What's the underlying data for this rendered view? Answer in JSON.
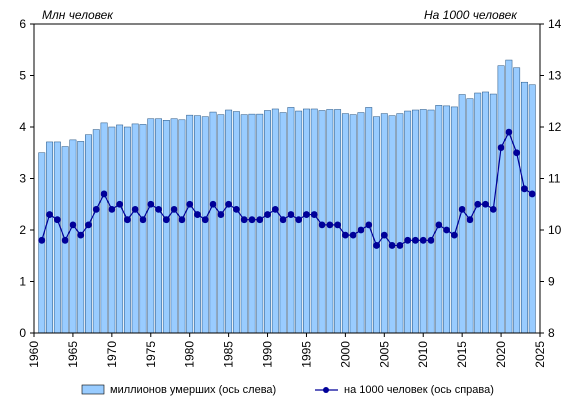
{
  "chart_data": {
    "type": "bar+line",
    "left_axis_label": "Млн  человек",
    "right_axis_label": "На 1000 человек",
    "ylim_left": [
      0,
      6
    ],
    "ylim_right": [
      8,
      14
    ],
    "yticks_left": [
      "0",
      "1",
      "2",
      "3",
      "4",
      "5",
      "6"
    ],
    "yticks_right": [
      "8",
      "9",
      "10",
      "11",
      "12",
      "13",
      "14"
    ],
    "xlim": [
      1960,
      2025
    ],
    "xticks": [
      "1960",
      "1965",
      "1970",
      "1975",
      "1980",
      "1985",
      "1990",
      "1995",
      "2000",
      "2005",
      "2010",
      "2015",
      "2020",
      "2025"
    ],
    "x": [
      1961,
      1962,
      1963,
      1964,
      1965,
      1966,
      1967,
      1968,
      1969,
      1970,
      1971,
      1972,
      1973,
      1974,
      1975,
      1976,
      1977,
      1978,
      1979,
      1980,
      1981,
      1982,
      1983,
      1984,
      1985,
      1986,
      1987,
      1988,
      1989,
      1990,
      1991,
      1992,
      1993,
      1994,
      1995,
      1996,
      1997,
      1998,
      1999,
      2000,
      2001,
      2002,
      2003,
      2004,
      2005,
      2006,
      2007,
      2008,
      2009,
      2010,
      2011,
      2012,
      2013,
      2014,
      2015,
      2016,
      2017,
      2018,
      2019,
      2020,
      2021,
      2022,
      2023,
      2024
    ],
    "series": [
      {
        "name": "миллионов  умерших (ось слева)",
        "type": "bar",
        "axis": "left",
        "color": "#99ccff",
        "values": [
          3.5,
          3.71,
          3.71,
          3.62,
          3.75,
          3.72,
          3.85,
          3.95,
          4.08,
          4.0,
          4.04,
          4.0,
          4.06,
          4.05,
          4.16,
          4.16,
          4.13,
          4.16,
          4.14,
          4.23,
          4.22,
          4.2,
          4.29,
          4.24,
          4.33,
          4.3,
          4.24,
          4.25,
          4.25,
          4.32,
          4.35,
          4.28,
          4.38,
          4.31,
          4.35,
          4.35,
          4.32,
          4.34,
          4.34,
          4.26,
          4.24,
          4.28,
          4.38,
          4.2,
          4.26,
          4.22,
          4.26,
          4.31,
          4.33,
          4.34,
          4.33,
          4.42,
          4.41,
          4.39,
          4.63,
          4.55,
          4.66,
          4.68,
          4.64,
          5.19,
          5.3,
          5.15,
          4.87,
          4.82
        ]
      },
      {
        "name": "на 1000 человек (ось справа)",
        "type": "line",
        "axis": "right",
        "color": "#000099",
        "values": [
          9.8,
          10.3,
          10.2,
          9.8,
          10.1,
          9.9,
          10.1,
          10.4,
          10.7,
          10.4,
          10.5,
          10.2,
          10.4,
          10.2,
          10.5,
          10.4,
          10.2,
          10.4,
          10.2,
          10.5,
          10.3,
          10.2,
          10.5,
          10.3,
          10.5,
          10.4,
          10.2,
          10.2,
          10.2,
          10.3,
          10.4,
          10.2,
          10.3,
          10.2,
          10.3,
          10.3,
          10.1,
          10.1,
          10.1,
          9.9,
          9.9,
          10.0,
          10.1,
          9.7,
          9.9,
          9.7,
          9.7,
          9.8,
          9.8,
          9.8,
          9.8,
          10.1,
          10.0,
          9.9,
          10.4,
          10.2,
          10.5,
          10.5,
          10.4,
          11.6,
          11.9,
          11.5,
          10.8,
          10.7
        ]
      }
    ],
    "grid": false,
    "legend_position": "bottom"
  }
}
